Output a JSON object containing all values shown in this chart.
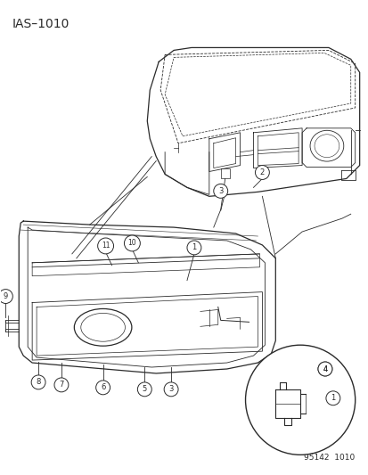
{
  "title": "IAS–1010",
  "diagram_code": "95142  1010",
  "background_color": "#ffffff",
  "line_color": "#2a2a2a",
  "fig_width": 4.14,
  "fig_height": 5.33,
  "dpi": 100,
  "title_fontsize": 10,
  "diagram_code_fontsize": 6.5,
  "label_fontsize": 6.5
}
